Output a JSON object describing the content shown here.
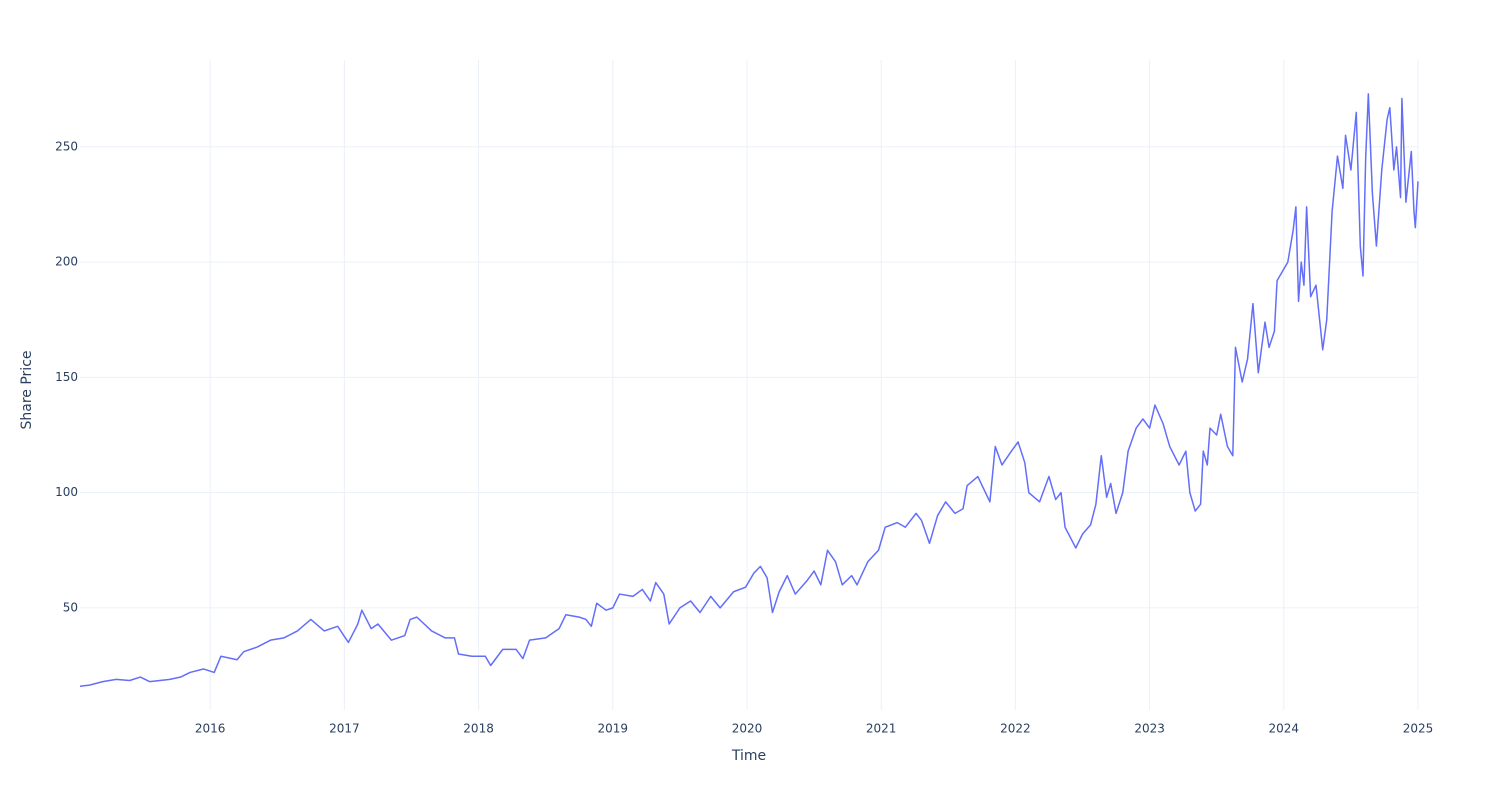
{
  "chart_data": {
    "type": "line",
    "x_label": "Time",
    "y_label": "Share Price",
    "color": "#636efa",
    "grid": true,
    "xlim": [
      2015.03,
      2025.0
    ],
    "xticks": [
      2016,
      2017,
      2018,
      2019,
      2020,
      2021,
      2022,
      2023,
      2024,
      2025
    ],
    "ylim": [
      5.7,
      287.7
    ],
    "yticks": [
      50,
      100,
      150,
      200,
      250
    ],
    "x": [
      2015.03,
      2015.1,
      2015.2,
      2015.3,
      2015.4,
      2015.48,
      2015.55,
      2015.7,
      2015.78,
      2015.85,
      2015.95,
      2016.03,
      2016.08,
      2016.2,
      2016.25,
      2016.35,
      2016.45,
      2016.55,
      2016.65,
      2016.75,
      2016.85,
      2016.95,
      2017.03,
      2017.1,
      2017.13,
      2017.2,
      2017.25,
      2017.35,
      2017.45,
      2017.49,
      2017.54,
      2017.65,
      2017.75,
      2017.82,
      2017.85,
      2017.95,
      2018.05,
      2018.09,
      2018.18,
      2018.28,
      2018.33,
      2018.38,
      2018.5,
      2018.6,
      2018.65,
      2018.75,
      2018.8,
      2018.84,
      2018.88,
      2018.95,
      2019.0,
      2019.05,
      2019.15,
      2019.22,
      2019.28,
      2019.32,
      2019.38,
      2019.42,
      2019.5,
      2019.58,
      2019.65,
      2019.73,
      2019.8,
      2019.9,
      2019.99,
      2020.05,
      2020.1,
      2020.15,
      2020.19,
      2020.24,
      2020.3,
      2020.36,
      2020.45,
      2020.5,
      2020.55,
      2020.6,
      2020.66,
      2020.71,
      2020.78,
      2020.82,
      2020.9,
      2020.98,
      2021.03,
      2021.12,
      2021.18,
      2021.26,
      2021.3,
      2021.36,
      2021.42,
      2021.48,
      2021.55,
      2021.61,
      2021.64,
      2021.72,
      2021.81,
      2021.85,
      2021.9,
      2021.97,
      2022.02,
      2022.07,
      2022.1,
      2022.18,
      2022.25,
      2022.3,
      2022.34,
      2022.37,
      2022.45,
      2022.5,
      2022.56,
      2022.6,
      2022.64,
      2022.68,
      2022.71,
      2022.75,
      2022.8,
      2022.84,
      2022.9,
      2022.95,
      2023.0,
      2023.04,
      2023.1,
      2023.15,
      2023.22,
      2023.27,
      2023.3,
      2023.34,
      2023.38,
      2023.4,
      2023.43,
      2023.45,
      2023.5,
      2023.53,
      2023.58,
      2023.62,
      2023.64,
      2023.69,
      2023.73,
      2023.77,
      2023.81,
      2023.86,
      2023.89,
      2023.93,
      2023.95,
      2023.99,
      2024.03,
      2024.07,
      2024.09,
      2024.11,
      2024.13,
      2024.15,
      2024.17,
      2024.2,
      2024.24,
      2024.29,
      2024.32,
      2024.36,
      2024.4,
      2024.44,
      2024.46,
      2024.5,
      2024.54,
      2024.57,
      2024.59,
      2024.61,
      2024.63,
      2024.66,
      2024.69,
      2024.73,
      2024.77,
      2024.79,
      2024.82,
      2024.84,
      2024.87,
      2024.88,
      2024.91,
      2024.95,
      2024.97,
      2024.98,
      2025.0
    ],
    "values": [
      16,
      16.5,
      18,
      19,
      18.5,
      20,
      18,
      19,
      20,
      22,
      23.5,
      22,
      29,
      27.5,
      31,
      33,
      36,
      37,
      40,
      45,
      40,
      42,
      35,
      43,
      49,
      41,
      43,
      36,
      38,
      45,
      46,
      40,
      37,
      37,
      30,
      29,
      29,
      25,
      32,
      32,
      28,
      36,
      37,
      41,
      47,
      46,
      45,
      42,
      52,
      49,
      50,
      56,
      55,
      58,
      53,
      61,
      56,
      43,
      50,
      53,
      48,
      55,
      50,
      57,
      59,
      65,
      68,
      63,
      48,
      57,
      64,
      56,
      62,
      66,
      60,
      75,
      70,
      60,
      64,
      60,
      70,
      75,
      85,
      87,
      85,
      91,
      88,
      78,
      90,
      96,
      91,
      93,
      103,
      107,
      96,
      120,
      112,
      118,
      122,
      113,
      100,
      96,
      107,
      97,
      100,
      85,
      76,
      82,
      86,
      95,
      116,
      98,
      104,
      91,
      100,
      118,
      128,
      132,
      128,
      138,
      130,
      120,
      112,
      118,
      100,
      92,
      95,
      118,
      112,
      128,
      125,
      134,
      120,
      116,
      163,
      148,
      158,
      182,
      152,
      174,
      163,
      170,
      192,
      196,
      200,
      214,
      224,
      183,
      200,
      190,
      224,
      185,
      190,
      162,
      175,
      222,
      246,
      232,
      255,
      240,
      265,
      207,
      194,
      245,
      273,
      230,
      207,
      240,
      262,
      267,
      240,
      250,
      228,
      271,
      226,
      248,
      222,
      215,
      235
    ]
  }
}
